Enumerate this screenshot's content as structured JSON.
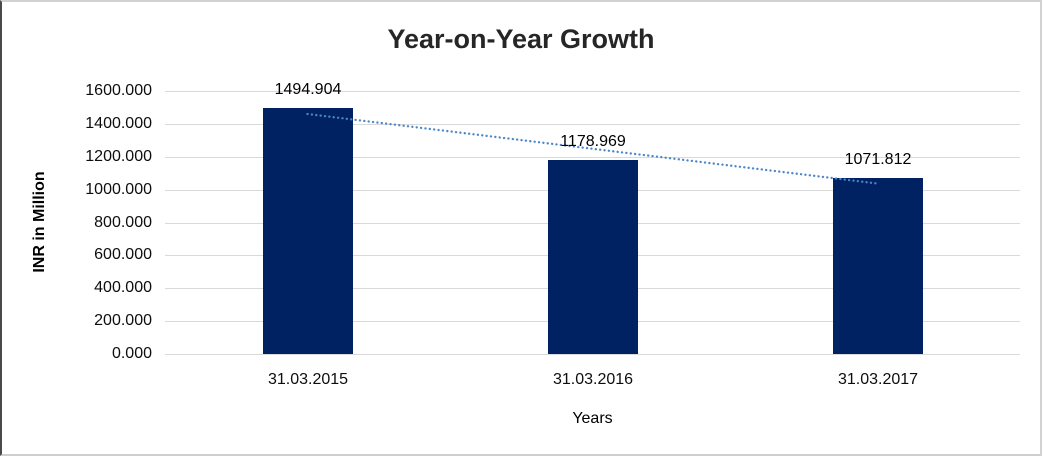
{
  "chart_data": {
    "type": "bar",
    "title": "Year-on-Year Growth",
    "xlabel": "Years",
    "ylabel": "INR in Million",
    "categories": [
      "31.03.2015",
      "31.03.2016",
      "31.03.2017"
    ],
    "values": [
      1494.904,
      1178.969,
      1071.812
    ],
    "data_labels": [
      "1494.904",
      "1178.969",
      "1071.812"
    ],
    "ylim": [
      0,
      1600
    ],
    "y_tick_step": 200,
    "y_tick_labels": [
      "0.000",
      "200.000",
      "400.000",
      "600.000",
      "800.000",
      "1000.000",
      "1200.000",
      "1400.000",
      "1600.000"
    ],
    "grid": true,
    "legend_position": "none",
    "bar_color": "#002263",
    "gridline_color": "#d9d9d9",
    "trendline": {
      "type": "linear",
      "style": "dotted",
      "color": "#4a86c8",
      "start_value": 1460.108,
      "end_value": 1037.016
    }
  }
}
